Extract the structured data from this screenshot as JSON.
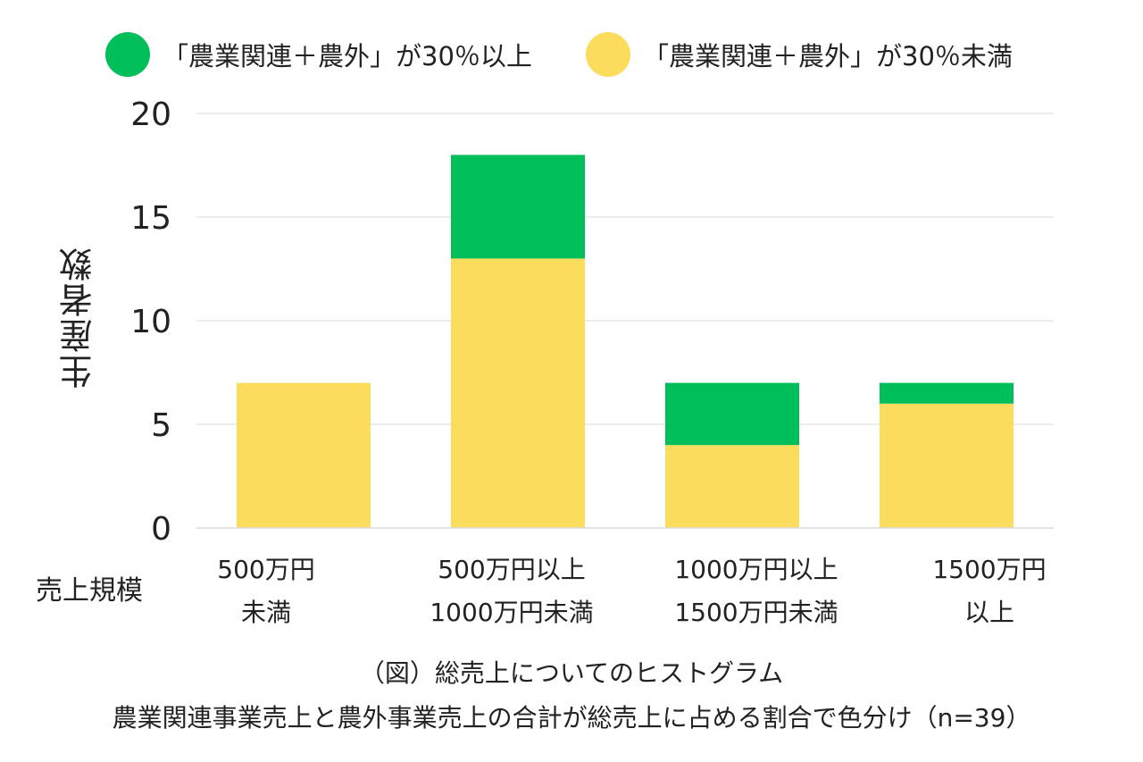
{
  "chart_data": {
    "type": "bar",
    "stacked": true,
    "ylabel": "生産者数",
    "xlabel": "売上規模",
    "ylim": [
      0,
      20
    ],
    "yticks": [
      0,
      5,
      10,
      15,
      20
    ],
    "grid": true,
    "legend_position": "top",
    "categories": [
      {
        "line1": "500万円",
        "line2": "未満"
      },
      {
        "line1": "500万円以上",
        "line2": "1000万円未満"
      },
      {
        "line1": "1000万円以上",
        "line2": "1500万円未満"
      },
      {
        "line1": "1500万円",
        "line2": "以上"
      }
    ],
    "series": [
      {
        "name": "「農業関連＋農外」が30％未満",
        "color": "#FCDC5C",
        "values": [
          7,
          13,
          4,
          6
        ]
      },
      {
        "name": "「農業関連＋農外」が30％以上",
        "color": "#00BE5A",
        "values": [
          0,
          5,
          3,
          1
        ]
      }
    ]
  },
  "legend": [
    {
      "label": "「農業関連＋農外」が30％以上",
      "color": "#00BE5A"
    },
    {
      "label": "「農業関連＋農外」が30％未満",
      "color": "#FCDC5C"
    }
  ],
  "caption": {
    "line1": "（図）総売上についてのヒストグラム",
    "line2": "農業関連事業売上と農外事業売上の合計が総売上に占める割合で色分け（n=39）"
  }
}
